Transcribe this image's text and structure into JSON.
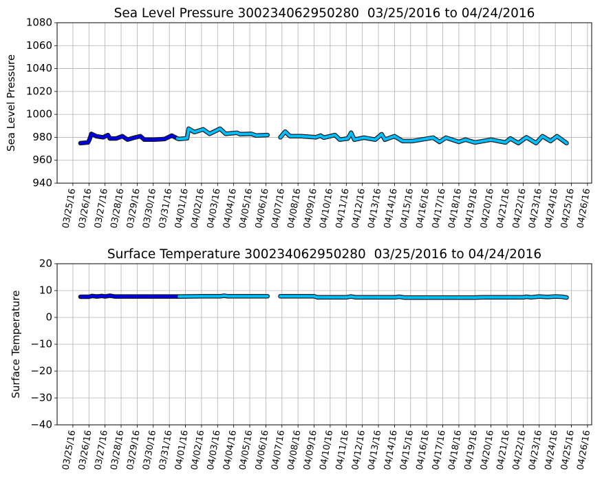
{
  "chart_data": [
    {
      "type": "line",
      "title": "Sea Level Pressure 300234062950280  03/25/2016 to 04/24/2016",
      "xlabel": "",
      "ylabel": "Sea Level Pressure",
      "ylim": [
        940,
        1080
      ],
      "yticks": [
        940,
        960,
        980,
        1000,
        1020,
        1040,
        1060,
        1080
      ],
      "xlim_days_from_03_25_16": [
        -0.98,
        32.26
      ],
      "xtick_labels": [
        "03/25/16",
        "03/26/16",
        "03/27/16",
        "03/28/16",
        "03/29/16",
        "03/30/16",
        "03/31/16",
        "04/01/16",
        "04/02/16",
        "04/03/16",
        "04/04/16",
        "04/05/16",
        "04/06/16",
        "04/07/16",
        "04/08/16",
        "04/09/16",
        "04/10/16",
        "04/11/16",
        "04/12/16",
        "04/13/16",
        "04/14/16",
        "04/15/16",
        "04/16/16",
        "04/17/16",
        "04/18/16",
        "04/19/16",
        "04/20/16",
        "04/21/16",
        "04/22/16",
        "04/23/16",
        "04/24/16",
        "04/25/16",
        "04/26/16"
      ],
      "grid": true,
      "series": [
        {
          "name": "segment-1",
          "color": "#0000e6",
          "points": [
            [
              0.47,
              974.9
            ],
            [
              0.94,
              975.5
            ],
            [
              1.03,
              978
            ],
            [
              1.15,
              983
            ],
            [
              1.45,
              981
            ],
            [
              1.88,
              980
            ],
            [
              2.18,
              982
            ],
            [
              2.3,
              979
            ],
            [
              2.7,
              979
            ],
            [
              3.08,
              981
            ],
            [
              3.4,
              978
            ],
            [
              3.9,
              980
            ],
            [
              4.2,
              981
            ],
            [
              4.44,
              978
            ],
            [
              5.1,
              978
            ],
            [
              5.7,
              978.5
            ],
            [
              6.15,
              981.5
            ],
            [
              6.5,
              979
            ]
          ]
        },
        {
          "name": "segment-2",
          "color": "#00bfff",
          "points": [
            [
              6.5,
              979
            ],
            [
              6.6,
              978.5
            ],
            [
              7.1,
              979.2
            ],
            [
              7.2,
              987.5
            ],
            [
              7.56,
              984.5
            ],
            [
              8.1,
              987
            ],
            [
              8.5,
              983
            ],
            [
              9.15,
              987.5
            ],
            [
              9.5,
              983
            ],
            [
              10.2,
              984
            ],
            [
              10.4,
              982.7
            ],
            [
              11.1,
              983
            ],
            [
              11.4,
              981.5
            ],
            [
              12.1,
              982
            ]
          ]
        },
        {
          "name": "segment-3",
          "color": "#00bfff",
          "points": [
            [
              12.9,
              980
            ],
            [
              13.2,
              985
            ],
            [
              13.5,
              981
            ],
            [
              14.2,
              981
            ],
            [
              15.1,
              980
            ],
            [
              15.4,
              981.5
            ],
            [
              15.6,
              979.7
            ],
            [
              16.3,
              982
            ],
            [
              16.6,
              978
            ],
            [
              17.1,
              979
            ],
            [
              17.3,
              984
            ],
            [
              17.5,
              978
            ],
            [
              18.1,
              979.7
            ],
            [
              18.8,
              978
            ],
            [
              19.2,
              982.7
            ],
            [
              19.4,
              978
            ],
            [
              20.0,
              981
            ],
            [
              20.5,
              976.7
            ],
            [
              21.1,
              976.7
            ],
            [
              22.4,
              979.7
            ],
            [
              22.8,
              976
            ],
            [
              23.2,
              979.7
            ],
            [
              24.0,
              976
            ],
            [
              24.4,
              978
            ],
            [
              25.0,
              975.5
            ],
            [
              26.0,
              978
            ],
            [
              26.9,
              975.5
            ],
            [
              27.2,
              979
            ],
            [
              27.7,
              975
            ],
            [
              28.2,
              980
            ],
            [
              28.8,
              975
            ],
            [
              29.2,
              981
            ],
            [
              29.7,
              976.7
            ],
            [
              30.1,
              981
            ],
            [
              30.7,
              975
            ]
          ]
        }
      ]
    },
    {
      "type": "line",
      "title": "Surface Temperature 300234062950280  03/25/2016 to 04/24/2016",
      "xlabel": "",
      "ylabel": "Surface Temperature",
      "ylim": [
        -40,
        20
      ],
      "yticks": [
        -40,
        -30,
        -20,
        -10,
        0,
        10,
        20
      ],
      "ytick_labels": [
        "−40",
        "−30",
        "−20",
        "−10",
        "0",
        "10",
        "20"
      ],
      "xlim_days_from_03_25_16": [
        -0.98,
        32.26
      ],
      "grid": true,
      "series": [
        {
          "name": "segment-1",
          "color": "#0000e6",
          "points": [
            [
              0.47,
              7.7
            ],
            [
              1.0,
              7.7
            ],
            [
              1.2,
              8.0
            ],
            [
              1.5,
              7.8
            ],
            [
              1.8,
              8.0
            ],
            [
              2.0,
              7.8
            ],
            [
              2.3,
              8.1
            ],
            [
              2.6,
              7.8
            ],
            [
              4.0,
              7.8
            ],
            [
              6.6,
              7.8
            ]
          ]
        },
        {
          "name": "segment-2",
          "color": "#00bfff",
          "points": [
            [
              6.6,
              7.8
            ],
            [
              8.0,
              7.9
            ],
            [
              9.2,
              7.9
            ],
            [
              9.4,
              8.1
            ],
            [
              9.6,
              7.9
            ],
            [
              12.1,
              7.9
            ]
          ]
        },
        {
          "name": "segment-3",
          "color": "#00bfff",
          "points": [
            [
              12.9,
              7.9
            ],
            [
              15.0,
              7.9
            ],
            [
              15.2,
              7.5
            ],
            [
              17.0,
              7.5
            ],
            [
              17.3,
              7.8
            ],
            [
              17.6,
              7.5
            ],
            [
              20.0,
              7.5
            ],
            [
              20.3,
              7.7
            ],
            [
              20.6,
              7.4
            ],
            [
              25.0,
              7.4
            ],
            [
              25.5,
              7.5
            ],
            [
              28.0,
              7.5
            ],
            [
              28.2,
              7.7
            ],
            [
              28.5,
              7.5
            ],
            [
              29.0,
              7.8
            ],
            [
              29.5,
              7.6
            ],
            [
              30.0,
              7.8
            ],
            [
              30.4,
              7.7
            ],
            [
              30.7,
              7.4
            ]
          ]
        }
      ]
    }
  ]
}
